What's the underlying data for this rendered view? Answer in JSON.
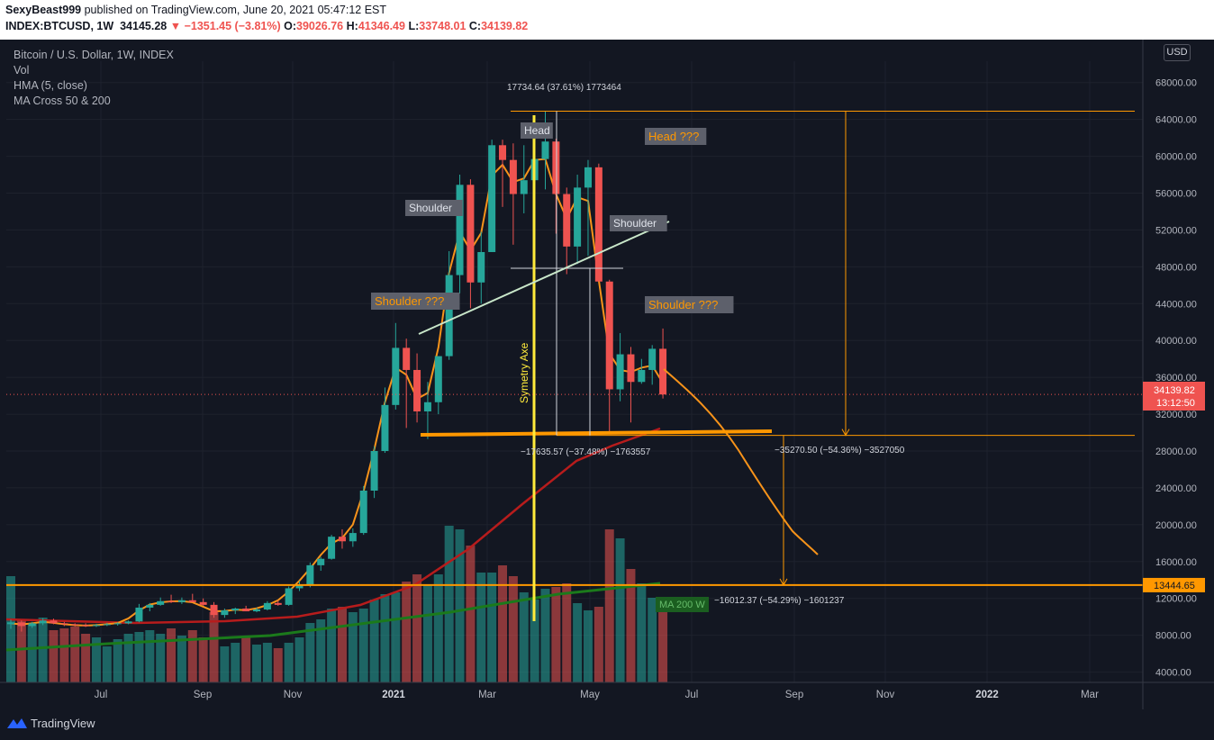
{
  "header": {
    "publisher": "SexyBeast999",
    "published_text": "published on TradingView.com, June 20, 2021 05:47:12 EST",
    "symbol": "INDEX:BTCUSD, 1W",
    "last": "34145.28",
    "change": "−1351.45 (−3.81%)",
    "open_label": "O:",
    "open": "39026.76",
    "high_label": "H:",
    "high": "41346.49",
    "low_label": "L:",
    "low": "33748.01",
    "close_label": "C:",
    "close": "34139.82"
  },
  "legend": {
    "title": "Bitcoin / U.S. Dollar, 1W, INDEX",
    "items": [
      "Vol",
      "HMA (5, close)",
      "MA Cross 50 & 200"
    ]
  },
  "currency_button": "USD",
  "footer": {
    "brand": "TradingView"
  },
  "colors": {
    "bull": "#26a69a",
    "bear": "#ef5350",
    "hma": "#f7931a",
    "ma50": "#b71c1c",
    "ma200": "#1b7a1b",
    "annotation": "#ff9800",
    "symmetry": "#ffeb3b",
    "neckline": "#c8e6c9"
  },
  "chart_data": {
    "type": "candlestick",
    "title": "Bitcoin / U.S. Dollar, 1W, INDEX",
    "y_axis_ticks": [
      "68000.00",
      "64000.00",
      "60000.00",
      "56000.00",
      "52000.00",
      "48000.00",
      "44000.00",
      "40000.00",
      "36000.00",
      "32000.00",
      "28000.00",
      "24000.00",
      "20000.00",
      "16000.00",
      "12000.00",
      "8000.00",
      "4000.00"
    ],
    "x_axis_ticks": [
      "Jul",
      "Sep",
      "Nov",
      "2021",
      "Mar",
      "May",
      "Jul",
      "Sep",
      "Nov",
      "2022",
      "Mar"
    ],
    "ylim": [
      2000,
      70500
    ],
    "price_labels": {
      "current": "34139.82",
      "countdown": "13:12:50",
      "target": "13444.65"
    },
    "candles": [
      [
        9200,
        9700,
        8700,
        9400
      ],
      [
        9400,
        9600,
        8400,
        9000
      ],
      [
        9000,
        9450,
        8800,
        9300
      ],
      [
        9300,
        9850,
        9100,
        9600
      ],
      [
        9600,
        9800,
        9200,
        9300
      ],
      [
        9300,
        9450,
        9000,
        9200
      ],
      [
        9200,
        9300,
        8950,
        9100
      ],
      [
        9100,
        9300,
        8900,
        9000
      ],
      [
        9000,
        9250,
        8900,
        9100
      ],
      [
        9100,
        9350,
        9000,
        9200
      ],
      [
        9200,
        9400,
        9050,
        9300
      ],
      [
        9300,
        9600,
        9200,
        9500
      ],
      [
        9500,
        11400,
        9400,
        11000
      ],
      [
        11000,
        11500,
        10600,
        11300
      ],
      [
        11300,
        12100,
        11200,
        11700
      ],
      [
        11700,
        12400,
        11500,
        11600
      ],
      [
        11600,
        12100,
        11400,
        11800
      ],
      [
        11800,
        12500,
        11600,
        11600
      ],
      [
        11600,
        12000,
        11200,
        11300
      ],
      [
        11300,
        11600,
        9900,
        10200
      ],
      [
        10200,
        10900,
        9900,
        10700
      ],
      [
        10700,
        11000,
        10300,
        10900
      ],
      [
        10900,
        11200,
        10600,
        10600
      ],
      [
        10600,
        11000,
        10500,
        10800
      ],
      [
        10800,
        11700,
        10700,
        11500
      ],
      [
        11500,
        11800,
        11200,
        11300
      ],
      [
        11300,
        13300,
        11200,
        13100
      ],
      [
        13100,
        13900,
        12800,
        13500
      ],
      [
        13500,
        15900,
        13200,
        15600
      ],
      [
        15600,
        16500,
        15000,
        16300
      ],
      [
        16300,
        18900,
        16200,
        18700
      ],
      [
        18700,
        19500,
        17400,
        18200
      ],
      [
        18200,
        19600,
        17600,
        19100
      ],
      [
        19100,
        24200,
        18900,
        23700
      ],
      [
        23700,
        28500,
        22900,
        28000
      ],
      [
        28000,
        34900,
        27800,
        33000
      ],
      [
        33000,
        41900,
        32500,
        39200
      ],
      [
        39200,
        40200,
        30500,
        36800
      ],
      [
        36800,
        38600,
        31100,
        32300
      ],
      [
        32300,
        35500,
        29300,
        33300
      ],
      [
        33300,
        38300,
        32000,
        38300
      ],
      [
        38300,
        49700,
        37900,
        47100
      ],
      [
        47100,
        58000,
        45100,
        56900
      ],
      [
        56900,
        57500,
        43500,
        46300
      ],
      [
        46300,
        51800,
        44000,
        49600
      ],
      [
        49600,
        61800,
        49600,
        61200
      ],
      [
        61200,
        61800,
        54500,
        59600
      ],
      [
        59600,
        61400,
        50400,
        55900
      ],
      [
        55900,
        61200,
        53800,
        57400
      ],
      [
        57400,
        61300,
        55500,
        59700
      ],
      [
        59700,
        64900,
        56400,
        61600
      ],
      [
        61600,
        61900,
        51600,
        55900
      ],
      [
        55900,
        56600,
        47200,
        50200
      ],
      [
        50200,
        58000,
        48300,
        56600
      ],
      [
        56600,
        59600,
        49200,
        58800
      ],
      [
        58800,
        59200,
        46600,
        46400
      ],
      [
        46400,
        46600,
        30000,
        34700
      ],
      [
        34700,
        40800,
        33400,
        38500
      ],
      [
        38500,
        39300,
        31100,
        35500
      ],
      [
        35500,
        38000,
        35300,
        36800
      ],
      [
        36800,
        39500,
        35200,
        39100
      ],
      [
        39100,
        41300,
        33700,
        34140
      ]
    ],
    "volume_unit_note": "",
    "annotations": [
      {
        "text": "17734.64 (37.61%) 1773464"
      },
      {
        "text": "−17635.57 (−37.48%) −1763557"
      },
      {
        "text": "−35270.50 (−54.36%) −3527050"
      },
      {
        "text": "−16012.37 (−54.29%) −1601237"
      }
    ],
    "labels": {
      "head": "Head",
      "head_q": "Head ???",
      "shoulder_l": "Shoulder",
      "shoulder_r": "Shoulder",
      "shoulder_q_l": "Shoulder ???",
      "shoulder_q_r": "Shoulder ???",
      "symmetry": "Symetry Axe",
      "ma200": "MA 200 W"
    },
    "levels": {
      "top": 64900,
      "neckline": 29700,
      "target": 13444.65
    }
  }
}
